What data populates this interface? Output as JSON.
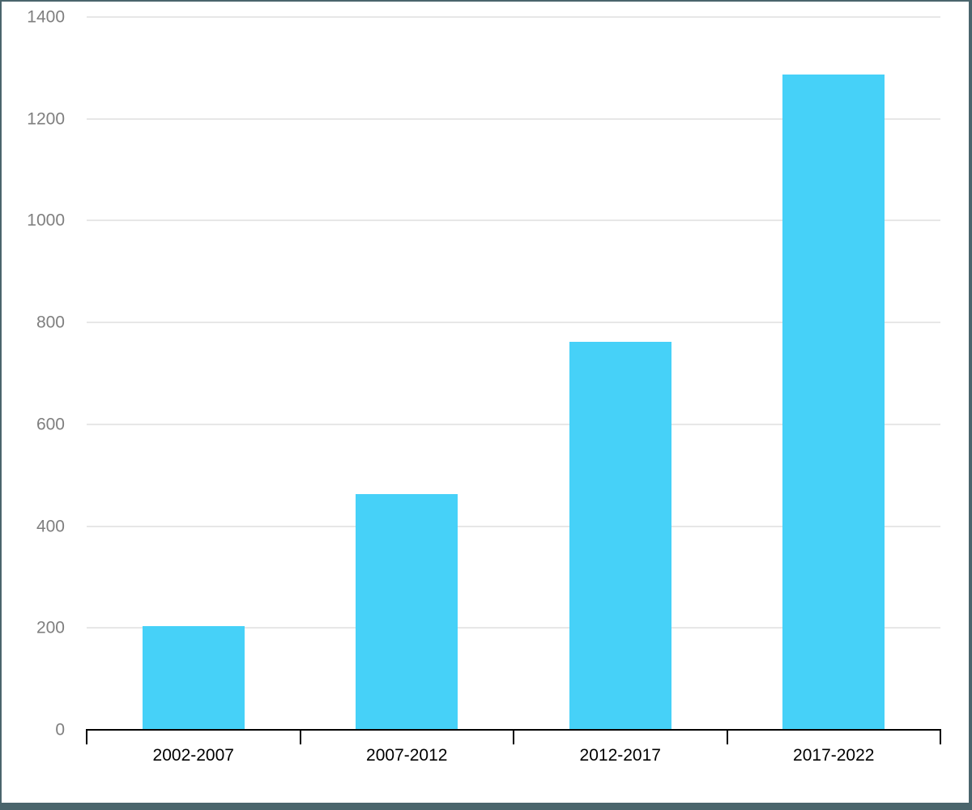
{
  "chart_data": {
    "type": "bar",
    "title": "",
    "xlabel": "",
    "ylabel": "",
    "categories": [
      "2002-2007",
      "2007-2012",
      "2012-2017",
      "2017-2022"
    ],
    "values": [
      203,
      463,
      762,
      1287
    ],
    "ylim": [
      0,
      1400
    ],
    "ytick_step": 200,
    "ytick_labels": [
      "0",
      "200",
      "400",
      "600",
      "800",
      "1000",
      "1200",
      "1400"
    ],
    "grid": true,
    "legend": false,
    "colors": {
      "bar": "#46d1f8",
      "gridline": "#e7e7e7",
      "axis": "#000000",
      "ytick_label": "#7f7f7f",
      "xtick_label": "#000000",
      "frame_border": "#4a656c",
      "background": "#ffffff"
    }
  }
}
